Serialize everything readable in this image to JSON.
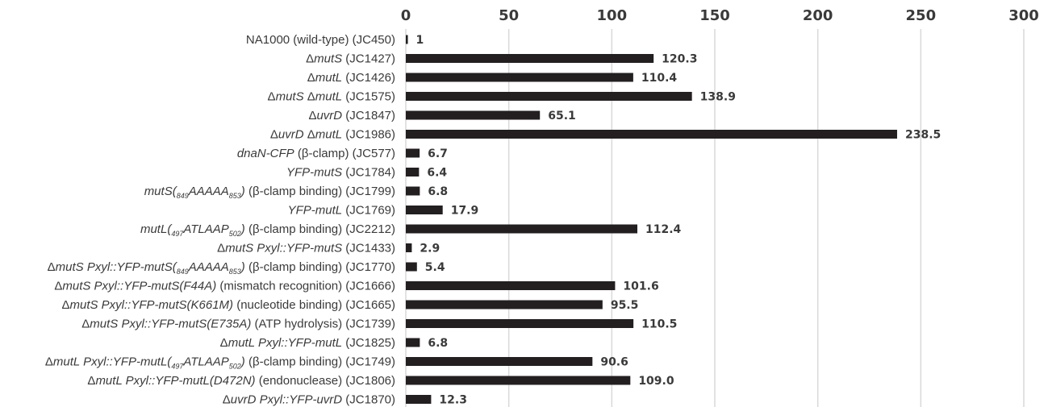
{
  "chart_data": {
    "type": "bar",
    "orientation": "horizontal",
    "axis_position": "top",
    "xlim": [
      0,
      300
    ],
    "xticks": [
      0,
      50,
      100,
      150,
      200,
      250,
      300
    ],
    "grid": true,
    "bar_color": "#231f20",
    "title": "",
    "xlabel": "",
    "ylabel": "",
    "categories": [
      [
        {
          "t": "NA1000 (wild-type) (JC450)",
          "i": false
        }
      ],
      [
        {
          "t": "Δ",
          "i": false
        },
        {
          "t": "mutS",
          "i": true
        },
        {
          "t": " (JC1427)",
          "i": false
        }
      ],
      [
        {
          "t": "Δ",
          "i": false
        },
        {
          "t": "mutL",
          "i": true
        },
        {
          "t": " (JC1426)",
          "i": false
        }
      ],
      [
        {
          "t": "Δ",
          "i": false
        },
        {
          "t": "mutS",
          "i": true
        },
        {
          "t": " Δ",
          "i": false
        },
        {
          "t": "mutL",
          "i": true
        },
        {
          "t": " (JC1575)",
          "i": false
        }
      ],
      [
        {
          "t": "Δ",
          "i": false
        },
        {
          "t": "uvrD",
          "i": true
        },
        {
          "t": " (JC1847)",
          "i": false
        }
      ],
      [
        {
          "t": "Δ",
          "i": false
        },
        {
          "t": "uvrD",
          "i": true
        },
        {
          "t": " Δ",
          "i": false
        },
        {
          "t": "mutL",
          "i": true
        },
        {
          "t": " (JC1986)",
          "i": false
        }
      ],
      [
        {
          "t": "dnaN-CFP",
          "i": true
        },
        {
          "t": " (β-clamp) (JC577)",
          "i": false
        }
      ],
      [
        {
          "t": "YFP-mutS",
          "i": true
        },
        {
          "t": " (JC1784)",
          "i": false
        }
      ],
      [
        {
          "t": "mutS(",
          "i": true
        },
        {
          "t": "849",
          "i": true,
          "sub": true
        },
        {
          "t": "AAAAA",
          "i": true
        },
        {
          "t": "853",
          "i": true,
          "sub": true
        },
        {
          "t": ")",
          "i": true
        },
        {
          "t": " (β-clamp binding) (JC1799)",
          "i": false
        }
      ],
      [
        {
          "t": "YFP-mutL",
          "i": true
        },
        {
          "t": " (JC1769)",
          "i": false
        }
      ],
      [
        {
          "t": "mutL(",
          "i": true
        },
        {
          "t": "497",
          "i": true,
          "sub": true
        },
        {
          "t": "ATLAAP",
          "i": true
        },
        {
          "t": "502",
          "i": true,
          "sub": true
        },
        {
          "t": ")",
          "i": true
        },
        {
          "t": " (β-clamp binding) (JC2212)",
          "i": false
        }
      ],
      [
        {
          "t": "Δ",
          "i": false
        },
        {
          "t": "mutS Pxyl::YFP-mutS",
          "i": true
        },
        {
          "t": " (JC1433)",
          "i": false
        }
      ],
      [
        {
          "t": "Δ",
          "i": false
        },
        {
          "t": "mutS Pxyl::YFP-mutS(",
          "i": true
        },
        {
          "t": "849",
          "i": true,
          "sub": true
        },
        {
          "t": "AAAAA",
          "i": true
        },
        {
          "t": "853",
          "i": true,
          "sub": true
        },
        {
          "t": ")",
          "i": true
        },
        {
          "t": " (β-clamp binding) (JC1770)",
          "i": false
        }
      ],
      [
        {
          "t": "Δ",
          "i": false
        },
        {
          "t": "mutS Pxyl::YFP-mutS(F44A)",
          "i": true
        },
        {
          "t": " (mismatch recognition) (JC1666)",
          "i": false
        }
      ],
      [
        {
          "t": "Δ",
          "i": false
        },
        {
          "t": "mutS Pxyl::YFP-mutS(K661M)",
          "i": true
        },
        {
          "t": " (nucleotide binding) (JC1665)",
          "i": false
        }
      ],
      [
        {
          "t": "Δ",
          "i": false
        },
        {
          "t": "mutS Pxyl::YFP-mutS(E735A)",
          "i": true
        },
        {
          "t": " (ATP hydrolysis) (JC1739)",
          "i": false
        }
      ],
      [
        {
          "t": "Δ",
          "i": false
        },
        {
          "t": "mutL Pxyl::YFP-mutL",
          "i": true
        },
        {
          "t": " (JC1825)",
          "i": false
        }
      ],
      [
        {
          "t": "Δ",
          "i": false
        },
        {
          "t": "mutL Pxyl::YFP-mutL(",
          "i": true
        },
        {
          "t": "497",
          "i": true,
          "sub": true
        },
        {
          "t": "ATLAAP",
          "i": true
        },
        {
          "t": "502",
          "i": true,
          "sub": true
        },
        {
          "t": ")",
          "i": true
        },
        {
          "t": " (β-clamp binding) (JC1749)",
          "i": false
        }
      ],
      [
        {
          "t": "Δ",
          "i": false
        },
        {
          "t": "mutL Pxyl::YFP-mutL(D472N)",
          "i": true
        },
        {
          "t": " (endonuclease) (JC1806)",
          "i": false
        }
      ],
      [
        {
          "t": "Δ",
          "i": false
        },
        {
          "t": "uvrD Pxyl::YFP-uvrD",
          "i": true
        },
        {
          "t": " (JC1870)",
          "i": false
        }
      ]
    ],
    "values": [
      1,
      120.3,
      110.4,
      138.9,
      65.1,
      238.5,
      6.7,
      6.4,
      6.8,
      17.9,
      112.4,
      2.9,
      5.4,
      101.6,
      95.5,
      110.5,
      6.8,
      90.6,
      109.0,
      12.3
    ],
    "value_labels": [
      "1",
      "120.3",
      "110.4",
      "138.9",
      "65.1",
      "238.5",
      "6.7",
      "6.4",
      "6.8",
      "17.9",
      "112.4",
      "2.9",
      "5.4",
      "101.6",
      "95.5",
      "110.5",
      "6.8",
      "90.6",
      "109.0",
      "12.3"
    ]
  }
}
